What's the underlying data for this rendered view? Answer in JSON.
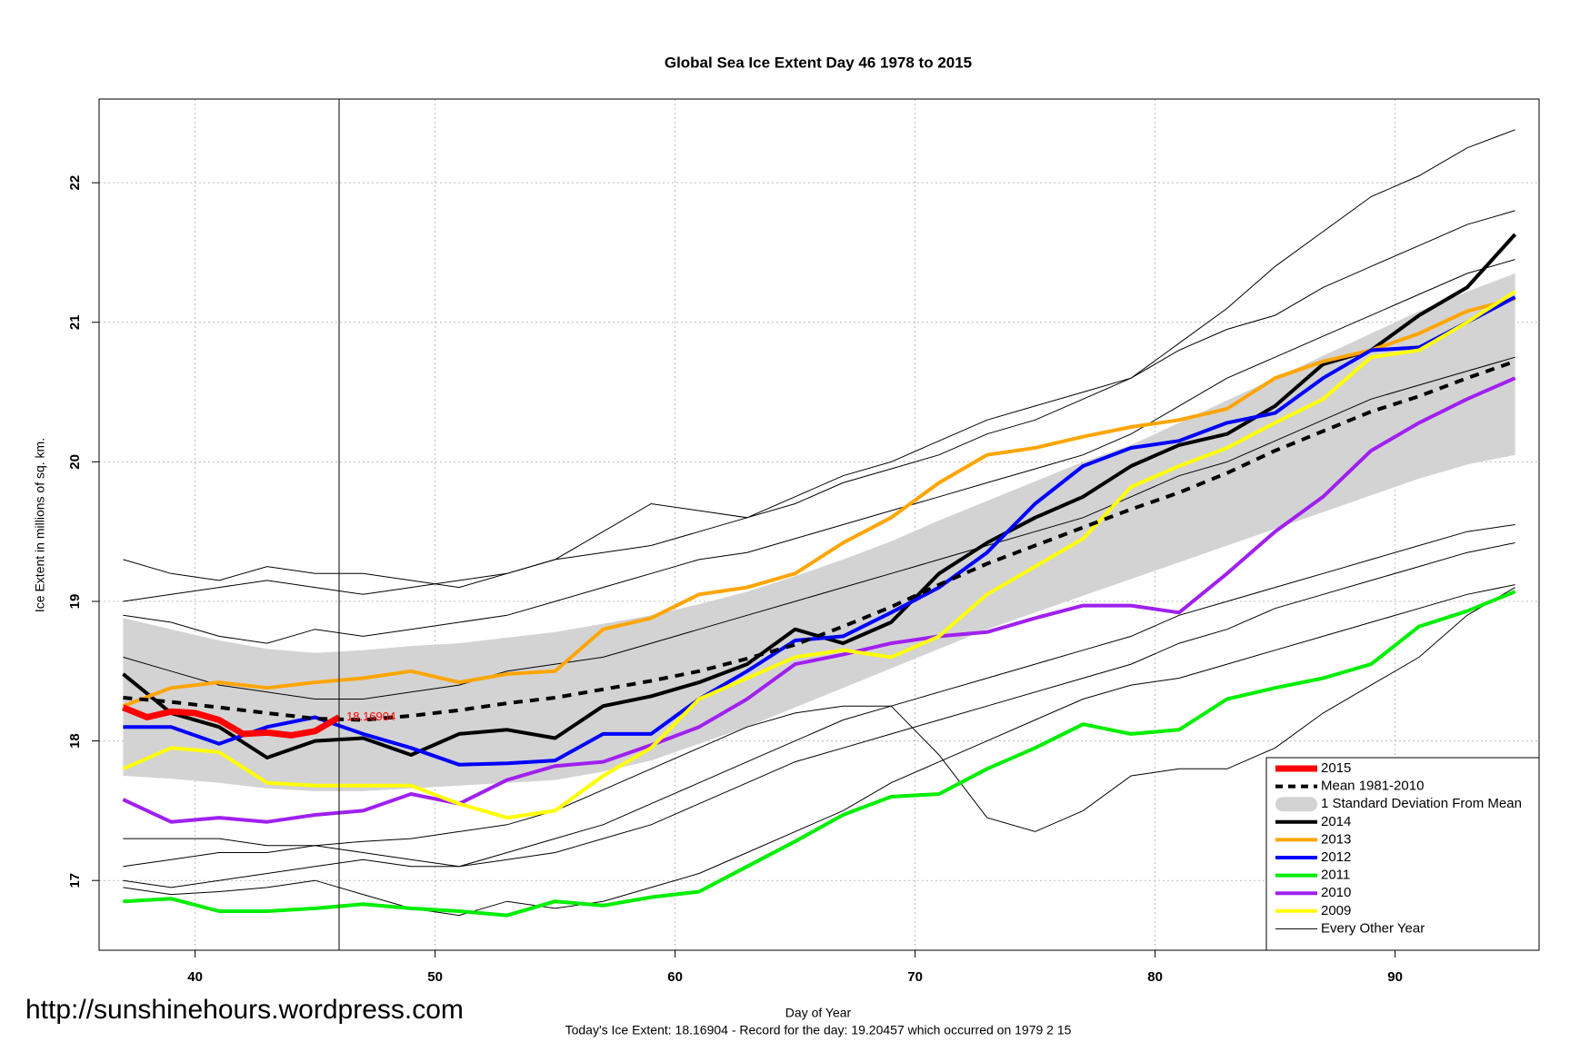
{
  "chart_data": {
    "type": "line",
    "title": "Global Sea Ice Extent Day 46 1978 to 2015",
    "x_label": "Day of Year",
    "y_label": "Ice Extent in millions of sq. km.",
    "footnote": "Today's Ice Extent: 18.16904  - Record for the day: 19.20457 which occurred on 1979 2 15",
    "watermark": "http://sunshinehours.wordpress.com",
    "xlim": [
      36,
      96
    ],
    "ylim": [
      16.5,
      22.6
    ],
    "xticks": [
      40,
      50,
      60,
      70,
      80,
      90
    ],
    "yticks": [
      17,
      18,
      19,
      20,
      21,
      22
    ],
    "grid": true,
    "vline_x": 46,
    "legend": "bottom-right",
    "x": [
      37,
      39,
      41,
      43,
      45,
      47,
      49,
      51,
      53,
      55,
      57,
      59,
      61,
      63,
      65,
      67,
      69,
      71,
      73,
      75,
      77,
      79,
      81,
      83,
      85,
      87,
      89,
      91,
      93,
      95
    ],
    "series": [
      {
        "name": "2015",
        "color": "#ff0000",
        "width": 7,
        "x": [
          37,
          38,
          39,
          40,
          41,
          42,
          43,
          44,
          45,
          46
        ],
        "values": [
          18.24,
          18.17,
          18.21,
          18.2,
          18.15,
          18.05,
          18.06,
          18.04,
          18.07,
          18.17
        ],
        "end_label": "18.16904"
      },
      {
        "name": "Mean 1981-2010",
        "color": "#000000",
        "width": 4,
        "dashed": true,
        "values": [
          18.31,
          18.28,
          18.24,
          18.2,
          18.16,
          18.15,
          18.18,
          18.22,
          18.27,
          18.31,
          18.37,
          18.43,
          18.5,
          18.59,
          18.69,
          18.82,
          18.96,
          19.12,
          19.27,
          19.4,
          19.53,
          19.66,
          19.78,
          19.92,
          20.08,
          20.22,
          20.36,
          20.47,
          20.6,
          20.72
        ]
      },
      {
        "name": "1 Standard Deviation From Mean",
        "color": "#d3d3d3",
        "upper": [
          18.88,
          18.8,
          18.72,
          18.66,
          18.63,
          18.65,
          18.68,
          18.7,
          18.74,
          18.78,
          18.84,
          18.9,
          18.98,
          19.07,
          19.18,
          19.3,
          19.43,
          19.58,
          19.72,
          19.86,
          20.0,
          20.12,
          20.28,
          20.44,
          20.6,
          20.76,
          20.92,
          21.08,
          21.22,
          21.35
        ],
        "lower": [
          17.75,
          17.73,
          17.7,
          17.66,
          17.64,
          17.64,
          17.66,
          17.68,
          17.7,
          17.72,
          17.78,
          17.86,
          17.98,
          18.1,
          18.24,
          18.38,
          18.52,
          18.66,
          18.8,
          18.92,
          19.04,
          19.16,
          19.28,
          19.4,
          19.52,
          19.64,
          19.76,
          19.88,
          19.98,
          20.05
        ]
      },
      {
        "name": "2014",
        "color": "#000000",
        "width": 4,
        "values": [
          18.48,
          18.2,
          18.1,
          17.88,
          18.0,
          18.02,
          17.9,
          18.05,
          18.08,
          18.02,
          18.25,
          18.32,
          18.42,
          18.55,
          18.8,
          18.7,
          18.85,
          19.2,
          19.42,
          19.6,
          19.75,
          19.97,
          20.12,
          20.2,
          20.4,
          20.7,
          20.8,
          21.05,
          21.25,
          21.63
        ]
      },
      {
        "name": "2013",
        "color": "#ffa500",
        "width": 4,
        "values": [
          18.25,
          18.38,
          18.42,
          18.38,
          18.42,
          18.45,
          18.5,
          18.42,
          18.48,
          18.5,
          18.8,
          18.88,
          19.05,
          19.1,
          19.2,
          19.42,
          19.6,
          19.85,
          20.05,
          20.1,
          20.18,
          20.25,
          20.3,
          20.38,
          20.6,
          20.72,
          20.8,
          20.92,
          21.08,
          21.17
        ]
      },
      {
        "name": "2012",
        "color": "#0000ff",
        "width": 4,
        "values": [
          18.1,
          18.1,
          17.98,
          18.1,
          18.17,
          18.05,
          17.95,
          17.83,
          17.84,
          17.86,
          18.05,
          18.05,
          18.3,
          18.5,
          18.72,
          18.75,
          18.92,
          19.1,
          19.35,
          19.7,
          19.97,
          20.1,
          20.15,
          20.28,
          20.35,
          20.6,
          20.8,
          20.82,
          21.0,
          21.18
        ]
      },
      {
        "name": "2011",
        "color": "#00ee00",
        "width": 4,
        "values": [
          16.85,
          16.87,
          16.78,
          16.78,
          16.8,
          16.83,
          16.8,
          16.78,
          16.75,
          16.85,
          16.82,
          16.88,
          16.92,
          17.1,
          17.28,
          17.47,
          17.6,
          17.62,
          17.8,
          17.95,
          18.12,
          18.05,
          18.08,
          18.3,
          18.38,
          18.45,
          18.55,
          18.82,
          18.93,
          19.07
        ]
      },
      {
        "name": "2010",
        "color": "#a020f0",
        "width": 4,
        "values": [
          17.58,
          17.42,
          17.45,
          17.42,
          17.47,
          17.5,
          17.62,
          17.55,
          17.72,
          17.82,
          17.85,
          17.97,
          18.1,
          18.3,
          18.55,
          18.62,
          18.7,
          18.75,
          18.78,
          18.88,
          18.97,
          18.97,
          18.92,
          19.2,
          19.5,
          19.75,
          20.08,
          20.28,
          20.45,
          20.6
        ]
      },
      {
        "name": "2009",
        "color": "#ffff00",
        "width": 4,
        "values": [
          17.8,
          17.95,
          17.92,
          17.7,
          17.68,
          17.68,
          17.68,
          17.55,
          17.45,
          17.5,
          17.75,
          17.95,
          18.3,
          18.45,
          18.6,
          18.65,
          18.6,
          18.75,
          19.05,
          19.25,
          19.45,
          19.82,
          19.97,
          20.1,
          20.28,
          20.45,
          20.75,
          20.8,
          21.0,
          21.22
        ]
      },
      {
        "name": "Every Other Year",
        "color": "#000000",
        "width": 1,
        "lines": [
          [
            19.3,
            19.2,
            19.15,
            19.25,
            19.2,
            19.2,
            19.15,
            19.1,
            19.2,
            19.3,
            19.5,
            19.7,
            19.65,
            19.6,
            19.75,
            19.9,
            20.0,
            20.15,
            20.3,
            20.4,
            20.5,
            20.6,
            20.85,
            21.1,
            21.4,
            21.65,
            21.9,
            22.05,
            22.25,
            22.38
          ],
          [
            19.0,
            19.05,
            19.1,
            19.15,
            19.1,
            19.05,
            19.1,
            19.15,
            19.2,
            19.3,
            19.35,
            19.4,
            19.5,
            19.6,
            19.7,
            19.85,
            19.95,
            20.05,
            20.2,
            20.3,
            20.45,
            20.6,
            20.8,
            20.95,
            21.05,
            21.25,
            21.4,
            21.55,
            21.7,
            21.8
          ],
          [
            18.9,
            18.85,
            18.75,
            18.7,
            18.8,
            18.75,
            18.8,
            18.85,
            18.9,
            19.0,
            19.1,
            19.2,
            19.3,
            19.35,
            19.45,
            19.55,
            19.65,
            19.75,
            19.85,
            19.95,
            20.05,
            20.2,
            20.4,
            20.6,
            20.75,
            20.9,
            21.05,
            21.2,
            21.35,
            21.45
          ],
          [
            18.6,
            18.5,
            18.4,
            18.35,
            18.3,
            18.3,
            18.35,
            18.4,
            18.5,
            18.55,
            18.6,
            18.7,
            18.8,
            18.9,
            19.0,
            19.1,
            19.2,
            19.3,
            19.4,
            19.5,
            19.6,
            19.75,
            19.9,
            20.0,
            20.15,
            20.3,
            20.45,
            20.55,
            20.65,
            20.75
          ],
          [
            17.3,
            17.3,
            17.3,
            17.25,
            17.25,
            17.28,
            17.3,
            17.35,
            17.4,
            17.5,
            17.65,
            17.8,
            17.95,
            18.1,
            18.2,
            18.25,
            18.25,
            17.9,
            17.45,
            17.35,
            17.5,
            17.75,
            17.8,
            17.8,
            17.95,
            18.2,
            18.4,
            18.6,
            18.9,
            19.1
          ],
          [
            17.0,
            16.95,
            17.0,
            17.05,
            17.1,
            17.15,
            17.1,
            17.1,
            17.15,
            17.2,
            17.3,
            17.4,
            17.55,
            17.7,
            17.85,
            17.95,
            18.05,
            18.15,
            18.25,
            18.35,
            18.45,
            18.55,
            18.7,
            18.8,
            18.95,
            19.05,
            19.15,
            19.25,
            19.35,
            19.42
          ],
          [
            17.1,
            17.15,
            17.2,
            17.2,
            17.25,
            17.2,
            17.15,
            17.1,
            17.2,
            17.3,
            17.4,
            17.55,
            17.7,
            17.85,
            18.0,
            18.15,
            18.25,
            18.35,
            18.45,
            18.55,
            18.65,
            18.75,
            18.9,
            19.0,
            19.1,
            19.2,
            19.3,
            19.4,
            19.5,
            19.55
          ],
          [
            16.95,
            16.9,
            16.92,
            16.95,
            17.0,
            16.9,
            16.8,
            16.75,
            16.85,
            16.8,
            16.85,
            16.95,
            17.05,
            17.2,
            17.35,
            17.5,
            17.7,
            17.85,
            18.0,
            18.15,
            18.3,
            18.4,
            18.45,
            18.55,
            18.65,
            18.75,
            18.85,
            18.95,
            19.05,
            19.12
          ]
        ]
      }
    ]
  }
}
